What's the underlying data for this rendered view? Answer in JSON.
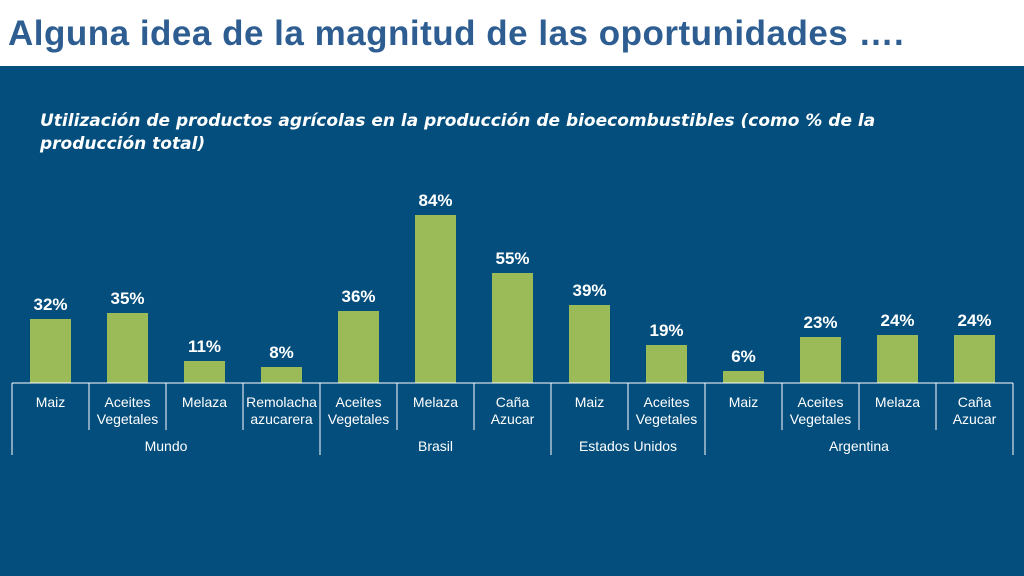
{
  "header": {
    "title": "Alguna idea de la magnitud de las oportunidades …."
  },
  "chart_data": {
    "type": "bar",
    "title": "Utilización de productos agrícolas en la producción de bioecombustibles (como % de la producción total)",
    "ylim": [
      0,
      100
    ],
    "bar_color": "#9BBB59",
    "background_color": "#034E7C",
    "groups": [
      {
        "name": "Mundo",
        "bars": [
          {
            "category": [
              "Maiz"
            ],
            "value": 32,
            "label": "32%"
          },
          {
            "category": [
              "Aceites",
              "Vegetales"
            ],
            "value": 35,
            "label": "35%"
          },
          {
            "category": [
              "Melaza"
            ],
            "value": 11,
            "label": "11%"
          },
          {
            "category": [
              "Remolacha",
              "azucarera"
            ],
            "value": 8,
            "label": "8%"
          }
        ]
      },
      {
        "name": "Brasil",
        "bars": [
          {
            "category": [
              "Aceites",
              "Vegetales"
            ],
            "value": 36,
            "label": "36%"
          },
          {
            "category": [
              "Melaza"
            ],
            "value": 84,
            "label": "84%"
          },
          {
            "category": [
              "Caña",
              "Azucar"
            ],
            "value": 55,
            "label": "55%"
          }
        ]
      },
      {
        "name": "Estados Unidos",
        "bars": [
          {
            "category": [
              "Maiz"
            ],
            "value": 39,
            "label": "39%"
          },
          {
            "category": [
              "Aceites",
              "Vegetales"
            ],
            "value": 19,
            "label": "19%"
          }
        ]
      },
      {
        "name": "Argentina",
        "bars": [
          {
            "category": [
              "Maiz"
            ],
            "value": 6,
            "label": "6%"
          },
          {
            "category": [
              "Aceites",
              "Vegetales"
            ],
            "value": 23,
            "label": "23%"
          },
          {
            "category": [
              "Melaza"
            ],
            "value": 24,
            "label": "24%"
          },
          {
            "category": [
              "Caña",
              "Azucar"
            ],
            "value": 24,
            "label": "24%"
          }
        ]
      }
    ]
  }
}
